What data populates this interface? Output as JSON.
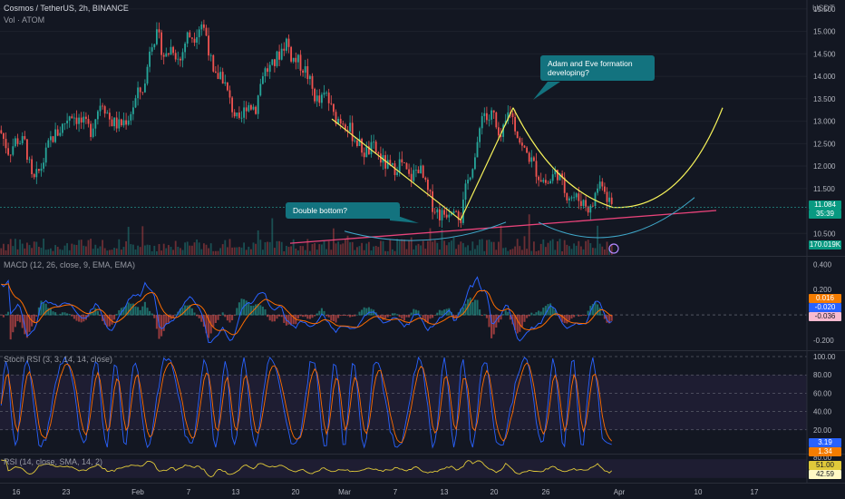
{
  "header": {
    "symbol_title": "Cosmos / TetherUS, 2h, BINANCE",
    "volume_label": "Vol · ATOM",
    "currency": "USDT"
  },
  "annotations": {
    "adam_eve": "Adam and Eve formation\ndeveloping?",
    "double_bottom": "Double bottom?"
  },
  "badges": {
    "price": "11.084",
    "countdown": "35:39",
    "volume": "170.019K",
    "macd_hist": "0.016",
    "macd_line": "-0.020",
    "macd_signal": "-0.036",
    "stoch_k": "3.19",
    "stoch_d": "1.34",
    "rsi": "51.00",
    "rsi_ma": "42.59"
  },
  "colors": {
    "background": "#131722",
    "up": "#26a69a",
    "down": "#ef5350",
    "trendline": "#f7f35a",
    "support": "#e9437a",
    "arc": "#3fa7c9",
    "callout": "#13737f",
    "macd": "#2962ff",
    "signal": "#ff6d00",
    "stoch_k": "#2962ff",
    "stoch_d": "#ff6d00",
    "rsi": "#e0c93a"
  },
  "chart_data": [
    {
      "type": "candlestick",
      "pane": "price",
      "yticks": [
        "15.500",
        "15.000",
        "14.500",
        "14.000",
        "13.500",
        "13.000",
        "12.500",
        "12.000",
        "11.500",
        "10.500"
      ],
      "ylim": [
        10.0,
        15.7
      ],
      "xticks": [
        "16",
        "23",
        "Feb",
        "7",
        "13",
        "20",
        "Mar",
        "7",
        "13",
        "20",
        "26",
        "Apr",
        "10",
        "17"
      ],
      "price_path": [
        [
          0,
          12.8
        ],
        [
          10,
          12.3
        ],
        [
          18,
          12.6
        ],
        [
          28,
          12.5
        ],
        [
          36,
          11.6
        ],
        [
          46,
          12.0
        ],
        [
          56,
          12.6
        ],
        [
          66,
          12.8
        ],
        [
          78,
          13.2
        ],
        [
          88,
          13.0
        ],
        [
          100,
          12.8
        ],
        [
          112,
          13.5
        ],
        [
          122,
          13.0
        ],
        [
          132,
          12.9
        ],
        [
          142,
          13.1
        ],
        [
          152,
          13.6
        ],
        [
          160,
          13.8
        ],
        [
          166,
          14.8
        ],
        [
          174,
          14.9
        ],
        [
          182,
          14.4
        ],
        [
          190,
          14.7
        ],
        [
          198,
          14.3
        ],
        [
          206,
          14.9
        ],
        [
          214,
          14.9
        ],
        [
          222,
          15.2
        ],
        [
          228,
          14.9
        ],
        [
          236,
          13.9
        ],
        [
          244,
          14.1
        ],
        [
          254,
          13.4
        ],
        [
          264,
          12.9
        ],
        [
          272,
          13.4
        ],
        [
          282,
          13.3
        ],
        [
          290,
          14.1
        ],
        [
          300,
          14.2
        ],
        [
          308,
          14.5
        ],
        [
          316,
          14.8
        ],
        [
          322,
          14.4
        ],
        [
          330,
          14.3
        ],
        [
          338,
          14.1
        ],
        [
          346,
          13.6
        ],
        [
          352,
          13.4
        ],
        [
          360,
          13.6
        ],
        [
          368,
          13.1
        ],
        [
          380,
          13.0
        ],
        [
          392,
          12.6
        ],
        [
          402,
          12.3
        ],
        [
          412,
          12.4
        ],
        [
          422,
          12.1
        ],
        [
          432,
          11.9
        ],
        [
          442,
          12.1
        ],
        [
          452,
          11.7
        ],
        [
          462,
          12.0
        ],
        [
          470,
          11.5
        ],
        [
          478,
          11.1
        ],
        [
          486,
          10.9
        ],
        [
          494,
          11.0
        ],
        [
          502,
          11.2
        ],
        [
          508,
          10.8
        ],
        [
          514,
          11.5
        ],
        [
          520,
          12.0
        ],
        [
          526,
          12.3
        ],
        [
          532,
          13.3
        ],
        [
          538,
          13.0
        ],
        [
          544,
          13.2
        ],
        [
          550,
          12.5
        ],
        [
          556,
          12.8
        ],
        [
          562,
          13.3
        ],
        [
          568,
          12.9
        ],
        [
          576,
          12.4
        ],
        [
          584,
          12.2
        ],
        [
          594,
          11.8
        ],
        [
          604,
          11.6
        ],
        [
          614,
          11.9
        ],
        [
          624,
          11.4
        ],
        [
          634,
          11.3
        ],
        [
          644,
          11.2
        ],
        [
          652,
          11.0
        ],
        [
          658,
          11.5
        ],
        [
          664,
          11.7
        ],
        [
          670,
          11.3
        ],
        [
          676,
          11.1
        ]
      ],
      "candle_count": 260
    },
    {
      "type": "bar",
      "pane": "volume",
      "series": [
        {
          "values_note": "volume bars"
        }
      ],
      "last_value": "170.019K"
    },
    {
      "type": "line",
      "pane": "macd",
      "yticks": [
        "0.400",
        "0.200",
        "-0.200"
      ],
      "ylim": [
        -0.28,
        0.46
      ],
      "series": [
        {
          "name": "MACD (12, 26, close, 9, EMA, EMA)",
          "values_note": "macd line, signal line and histogram"
        }
      ]
    },
    {
      "type": "line",
      "pane": "stoch_rsi",
      "yticks": [
        "100.00",
        "80.00",
        "60.00",
        "40.00",
        "20.00"
      ],
      "ylim": [
        0,
        100
      ],
      "series": [
        {
          "name": "Stoch RSI (3, 3, 14, 14, close)"
        }
      ]
    },
    {
      "type": "line",
      "pane": "rsi",
      "yticks": [
        "80.00"
      ],
      "ylim": [
        20,
        80
      ],
      "series": [
        {
          "name": "RSI (14, close, SMA, 14, 2)"
        }
      ]
    }
  ]
}
